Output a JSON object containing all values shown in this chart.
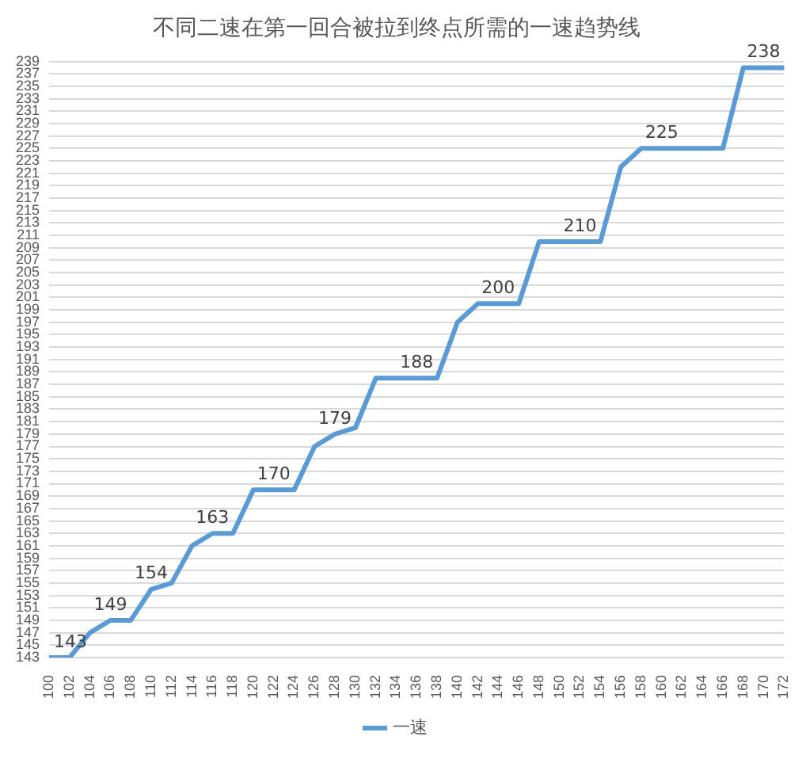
{
  "chart_data": {
    "type": "line",
    "title": "不同二速在第一回合被拉到终点所需的一速趋势线",
    "categories": [
      "100",
      "102",
      "104",
      "106",
      "108",
      "110",
      "112",
      "114",
      "116",
      "118",
      "120",
      "122",
      "124",
      "126",
      "128",
      "130",
      "132",
      "134",
      "136",
      "138",
      "140",
      "142",
      "144",
      "146",
      "148",
      "150",
      "152",
      "154",
      "156",
      "158",
      "160",
      "162",
      "164",
      "166",
      "168",
      "170",
      "172"
    ],
    "series": [
      {
        "name": "一速",
        "color": "#5b9bd5",
        "values": [
          143,
          143,
          147,
          149,
          149,
          154,
          155,
          161,
          163,
          163,
          170,
          170,
          170,
          177,
          179,
          180,
          188,
          188,
          188,
          188,
          197,
          200,
          200,
          200,
          210,
          210,
          210,
          210,
          222,
          225,
          225,
          225,
          225,
          225,
          238,
          238,
          238
        ],
        "value_labels": [
          "143",
          null,
          null,
          "149",
          null,
          "154",
          null,
          null,
          "163",
          null,
          null,
          "170",
          null,
          null,
          "179",
          null,
          null,
          null,
          "188",
          null,
          null,
          null,
          "200",
          null,
          null,
          null,
          "210",
          null,
          null,
          null,
          "225",
          null,
          null,
          null,
          null,
          "238",
          null
        ]
      }
    ],
    "ylim": [
      143,
      239
    ],
    "yticks": [
      143,
      145,
      147,
      149,
      151,
      153,
      155,
      157,
      159,
      161,
      163,
      165,
      167,
      169,
      171,
      173,
      175,
      177,
      179,
      181,
      183,
      185,
      187,
      189,
      191,
      193,
      195,
      197,
      199,
      201,
      203,
      205,
      207,
      209,
      211,
      213,
      215,
      217,
      219,
      221,
      223,
      225,
      227,
      229,
      231,
      233,
      235,
      237,
      239
    ],
    "grid": "y",
    "legend": "bottom",
    "marker": "none",
    "line_style": "solid"
  }
}
